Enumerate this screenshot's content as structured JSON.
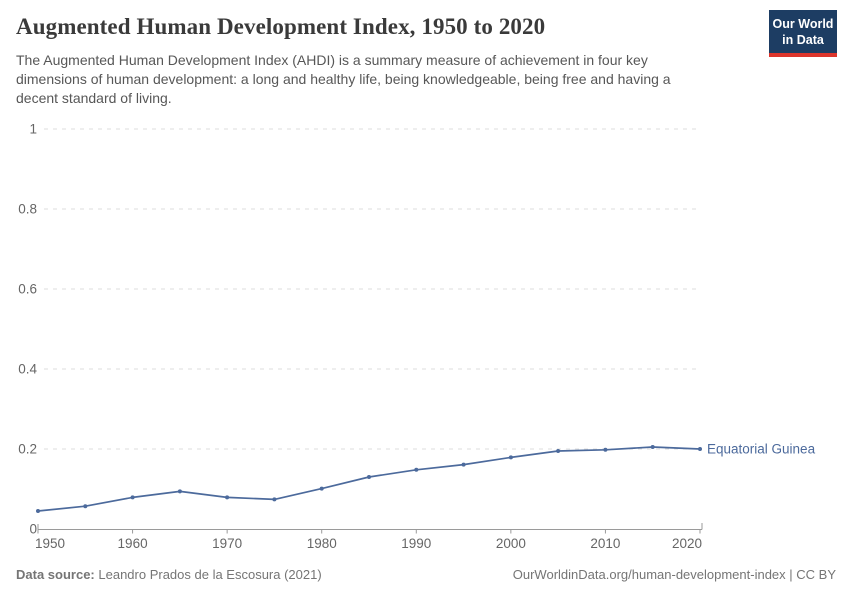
{
  "header": {
    "title": "Augmented Human Development Index, 1950 to 2020",
    "subtitle": "The Augmented Human Development Index (AHDI) is a summary measure of achievement in four key dimensions of human development: a long and healthy life, being knowledgeable, being free and having a decent standard of living.",
    "logo": {
      "line1": "Our World",
      "line2": "in Data"
    }
  },
  "chart_data": {
    "type": "line",
    "title": "Augmented Human Development Index, 1950 to 2020",
    "x": [
      1950,
      1955,
      1960,
      1965,
      1970,
      1975,
      1980,
      1985,
      1990,
      1995,
      2000,
      2005,
      2010,
      2015,
      2020
    ],
    "series": [
      {
        "name": "Equatorial Guinea",
        "color": "#4c6a9c",
        "values": [
          0.045,
          0.057,
          0.079,
          0.094,
          0.079,
          0.074,
          0.101,
          0.13,
          0.148,
          0.161,
          0.179,
          0.195,
          0.198,
          0.205,
          0.2
        ]
      }
    ],
    "xlabel": "",
    "ylabel": "",
    "ylim": [
      0,
      1
    ],
    "xlim": [
      1950,
      2020
    ],
    "yticks": [
      0,
      0.2,
      0.4,
      0.6,
      0.8,
      1
    ],
    "xticks": [
      1950,
      1960,
      1970,
      1980,
      1990,
      2000,
      2010,
      2020
    ],
    "grid": "horizontal-dashed",
    "legend_position": "end-of-line-label",
    "markers": "circle"
  },
  "footer": {
    "source_label": "Data source:",
    "source_value": "Leandro Prados de la Escosura (2021)",
    "credit": "OurWorldinData.org/human-development-index | CC BY"
  },
  "colors": {
    "series_line": "#4c6a9c",
    "logo_bg": "#1d3d63",
    "logo_stripe": "#dc352c",
    "grid": "#dddddd",
    "axis": "#9a9a9a",
    "tick_text": "#666666",
    "title_text": "#3a3a3a",
    "subtitle_text": "#575757",
    "footer_text": "#757575"
  }
}
